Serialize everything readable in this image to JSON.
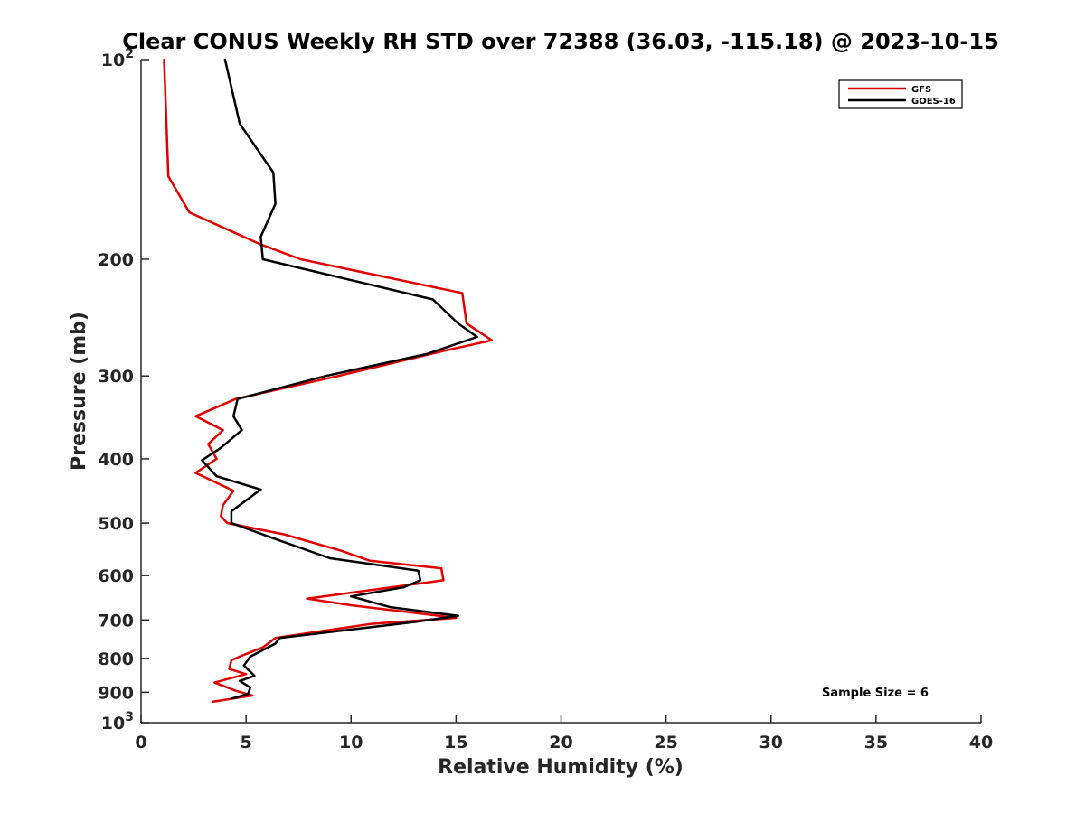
{
  "chart_data": {
    "type": "line",
    "title": "Clear CONUS Weekly RH STD over 72388 (36.03, -115.18) @ 2023-10-15",
    "xlabel": "Relative Humidity (%)",
    "ylabel": "Pressure (mb)",
    "xlim": [
      0,
      40
    ],
    "ylim": [
      100,
      1000
    ],
    "y_scale": "log",
    "y_reversed": true,
    "x_ticks": [
      0,
      5,
      10,
      15,
      20,
      25,
      30,
      35,
      40
    ],
    "x_tick_labels": [
      "0",
      "5",
      "10",
      "15",
      "20",
      "25",
      "30",
      "35",
      "40"
    ],
    "y_ticks": [
      100,
      200,
      300,
      400,
      500,
      600,
      700,
      800,
      900,
      1000
    ],
    "y_tick_labels": [
      {
        "base": "10",
        "exp": "2"
      },
      {
        "base": "200",
        "exp": ""
      },
      {
        "base": "300",
        "exp": ""
      },
      {
        "base": "400",
        "exp": ""
      },
      {
        "base": "500",
        "exp": ""
      },
      {
        "base": "600",
        "exp": ""
      },
      {
        "base": "700",
        "exp": ""
      },
      {
        "base": "800",
        "exp": ""
      },
      {
        "base": "900",
        "exp": ""
      },
      {
        "base": "10",
        "exp": "3"
      }
    ],
    "grid": false,
    "legend_position": "top-right",
    "series": [
      {
        "name": "GFS",
        "color": "#e00000",
        "points": [
          [
            1.1,
            100
          ],
          [
            1.3,
            150
          ],
          [
            2.3,
            170
          ],
          [
            5.7,
            190
          ],
          [
            7.6,
            200
          ],
          [
            15.3,
            225
          ],
          [
            15.5,
            250
          ],
          [
            16.7,
            265
          ],
          [
            14.4,
            275
          ],
          [
            9.4,
            300
          ],
          [
            4.5,
            325
          ],
          [
            2.6,
            345
          ],
          [
            3.9,
            362
          ],
          [
            3.2,
            380
          ],
          [
            3.6,
            400
          ],
          [
            2.6,
            420
          ],
          [
            4.4,
            447
          ],
          [
            3.9,
            470
          ],
          [
            3.8,
            488
          ],
          [
            4.1,
            500
          ],
          [
            6.8,
            520
          ],
          [
            9.5,
            550
          ],
          [
            10.9,
            570
          ],
          [
            14.3,
            585
          ],
          [
            14.4,
            610
          ],
          [
            7.9,
            650
          ],
          [
            10.0,
            665
          ],
          [
            15.0,
            695
          ],
          [
            10.9,
            710
          ],
          [
            6.4,
            745
          ],
          [
            5.8,
            770
          ],
          [
            4.9,
            790
          ],
          [
            4.3,
            805
          ],
          [
            4.2,
            830
          ],
          [
            5.0,
            845
          ],
          [
            3.5,
            870
          ],
          [
            4.5,
            895
          ],
          [
            5.3,
            910
          ],
          [
            3.4,
            930
          ]
        ]
      },
      {
        "name": "GOES-16",
        "color": "#000000",
        "points": [
          [
            4.0,
            100
          ],
          [
            4.7,
            125
          ],
          [
            6.3,
            148
          ],
          [
            6.4,
            165
          ],
          [
            5.7,
            185
          ],
          [
            5.8,
            200
          ],
          [
            13.9,
            230
          ],
          [
            15.1,
            250
          ],
          [
            16.0,
            262
          ],
          [
            13.6,
            278
          ],
          [
            8.8,
            300
          ],
          [
            4.6,
            325
          ],
          [
            4.4,
            345
          ],
          [
            4.8,
            362
          ],
          [
            3.8,
            385
          ],
          [
            2.9,
            402
          ],
          [
            3.6,
            425
          ],
          [
            5.7,
            445
          ],
          [
            4.3,
            480
          ],
          [
            4.3,
            500
          ],
          [
            6.5,
            530
          ],
          [
            9.0,
            565
          ],
          [
            13.2,
            590
          ],
          [
            13.3,
            610
          ],
          [
            12.5,
            625
          ],
          [
            10.0,
            645
          ],
          [
            11.9,
            670
          ],
          [
            15.1,
            690
          ],
          [
            13.0,
            705
          ],
          [
            6.6,
            745
          ],
          [
            6.4,
            760
          ],
          [
            5.2,
            795
          ],
          [
            4.9,
            820
          ],
          [
            5.4,
            850
          ],
          [
            4.7,
            865
          ],
          [
            5.2,
            885
          ],
          [
            5.1,
            905
          ],
          [
            4.3,
            920
          ]
        ]
      }
    ],
    "annotation": "Sample Size = 6"
  }
}
